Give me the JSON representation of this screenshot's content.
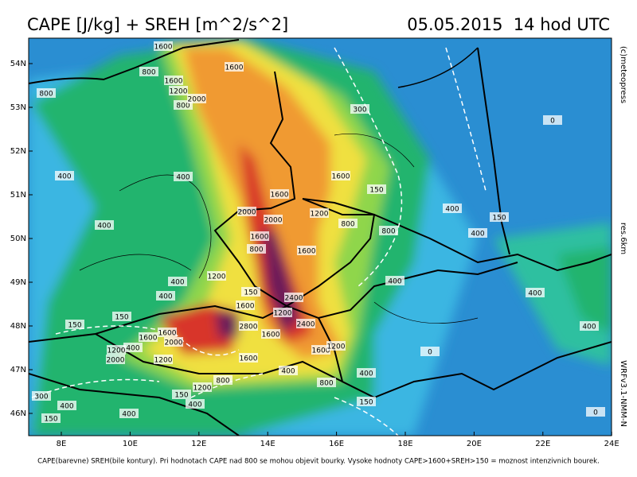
{
  "header": {
    "title": "CAPE [J/kg] + SREH [m^2/s^2]",
    "datetime": "05.05.2015  14 hod UTC"
  },
  "side": {
    "copyright": "(c)meteopress",
    "resolution": "res.6km",
    "model": "WRFv3.1-NMM-N"
  },
  "axes": {
    "lon_ticks": [
      "8E",
      "10E",
      "12E",
      "14E",
      "16E",
      "18E",
      "20E",
      "22E",
      "24E"
    ],
    "lat_ticks": [
      "54N",
      "53N",
      "52N",
      "51N",
      "50N",
      "49N",
      "48N",
      "47N",
      "46N"
    ]
  },
  "contour_labels": [
    1600,
    800,
    800,
    1600,
    1200,
    800,
    1600,
    2000,
    300,
    0,
    400,
    400,
    1600,
    1600,
    150,
    400,
    2000,
    2000,
    1200,
    800,
    400,
    150,
    800,
    400,
    1600,
    800,
    1600,
    1200,
    400,
    400,
    150,
    2400,
    400,
    1600,
    400,
    150,
    150,
    1200,
    2800,
    1600,
    1600,
    2000,
    2400,
    1600,
    400,
    1200,
    1600,
    1200,
    0,
    400,
    2000,
    1200,
    1600,
    400,
    400,
    800,
    800,
    1200,
    150,
    400,
    300,
    400,
    150,
    400,
    150,
    0
  ],
  "footer": "CAPE(barevne) SREH(bile kontury). Pri hodnotach CAPE nad 800 se mohou objevit bourky. Vysoke hodnoty CAPE>1600+SREH>150 = moznost intenzivnich bourek."
}
